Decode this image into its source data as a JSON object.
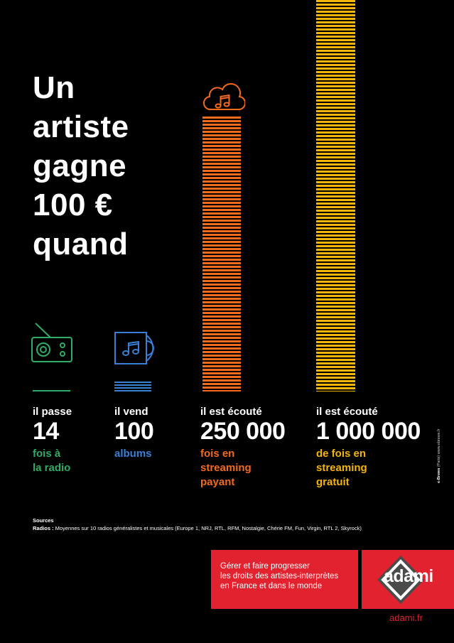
{
  "headline": [
    "Un",
    "artiste",
    "gagne",
    "100 €",
    "quand"
  ],
  "stats": [
    {
      "icon": "radio-icon",
      "intro": "il passe",
      "number": "14",
      "desc": [
        "fois à",
        "la radio"
      ],
      "color": "#2fad67"
    },
    {
      "icon": "album-icon",
      "intro": "il vend",
      "number": "100",
      "desc": [
        "albums"
      ],
      "color": "#3a7fd5"
    },
    {
      "icon": "cloud-music-icon",
      "intro": "il est écouté",
      "number": "250 000",
      "desc": [
        "fois en",
        "streaming",
        "payant"
      ],
      "color": "#f26b1d"
    },
    {
      "icon": null,
      "intro": "il est écouté",
      "number": "1 000 000",
      "desc": [
        "de fois en",
        "streaming",
        "gratuit"
      ],
      "color": "#f5b40a"
    }
  ],
  "sources": {
    "title": "Sources",
    "radios_label": "Radios :",
    "radios_text": " Moyennes sur 10 radios généralistes et musicales (Europe 1, NRJ, RTL, RFM, Nostalgie, Chérie FM, Fun, Virgin, RTL 2, Skyrock)"
  },
  "credit": {
    "brand": "e-Brews",
    "text": " (Paris) www.ebrews.fr"
  },
  "banner": {
    "lines": [
      "Gérer et faire progresser",
      "les droits des artistes-interprètes",
      "en France et dans le monde"
    ],
    "logo": "adami",
    "website": "adami.fr",
    "color": "#e2222f"
  }
}
